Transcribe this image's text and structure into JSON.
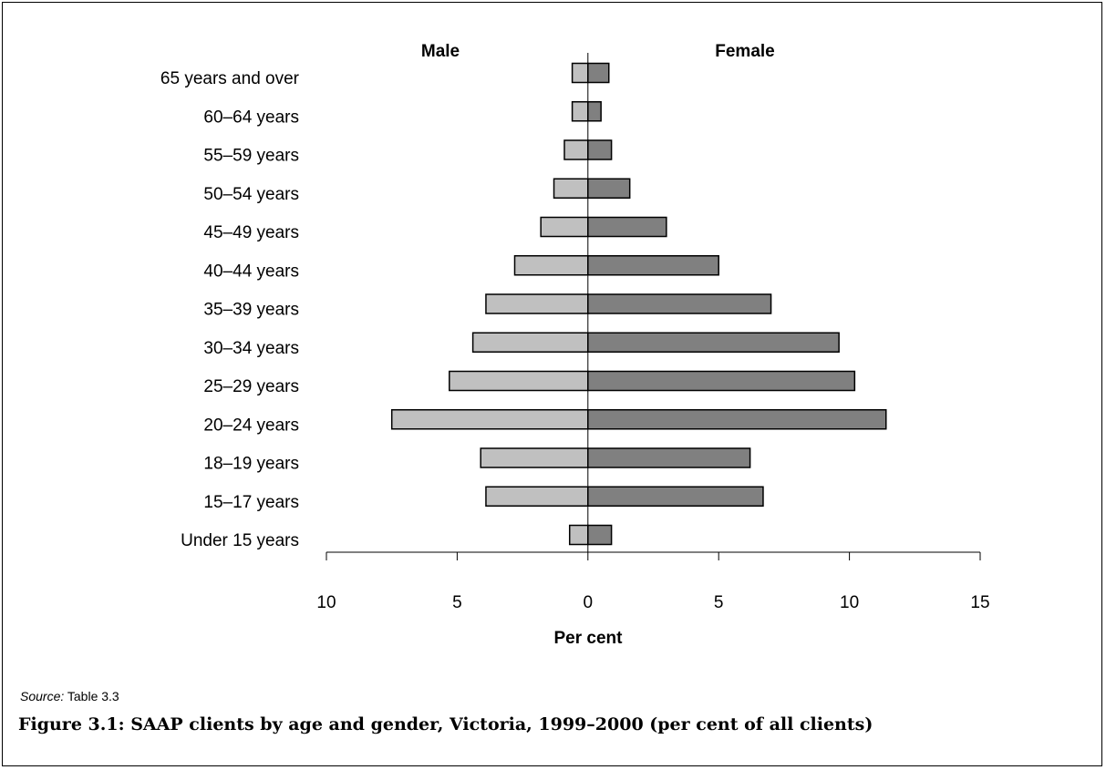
{
  "chart_data": {
    "type": "bar",
    "orientation": "horizontal",
    "categories": [
      "Under 15 years",
      "15–17 years",
      "18–19 years",
      "20–24 years",
      "25–29 years",
      "30–34 years",
      "35–39 years",
      "40–44 years",
      "45–49 years",
      "50–54 years",
      "55–59 years",
      "60–64 years",
      "65 years and over"
    ],
    "series": [
      {
        "name": "Male",
        "color": "#c0c0c0",
        "values": [
          0.7,
          3.9,
          4.1,
          7.5,
          5.3,
          4.4,
          3.9,
          2.8,
          1.8,
          1.3,
          0.9,
          0.6,
          0.6
        ]
      },
      {
        "name": "Female",
        "color": "#808080",
        "values": [
          0.9,
          6.7,
          6.2,
          11.4,
          10.2,
          9.6,
          7.0,
          5.0,
          3.0,
          1.6,
          0.9,
          0.5,
          0.8
        ]
      }
    ],
    "xlabel": "Per cent",
    "xlim": [
      -10,
      15
    ],
    "xticks": [
      {
        "value": -10,
        "label": "10"
      },
      {
        "value": -5,
        "label": "5"
      },
      {
        "value": 0,
        "label": "0"
      },
      {
        "value": 5,
        "label": "5"
      },
      {
        "value": 10,
        "label": "10"
      },
      {
        "value": 15,
        "label": "15"
      }
    ],
    "grid": false
  },
  "source": {
    "label": "Source:",
    "text": " Table 3.3"
  },
  "caption": "Figure 3.1: SAAP clients by age and gender, Victoria, 1999–2000 (per cent of all clients)"
}
